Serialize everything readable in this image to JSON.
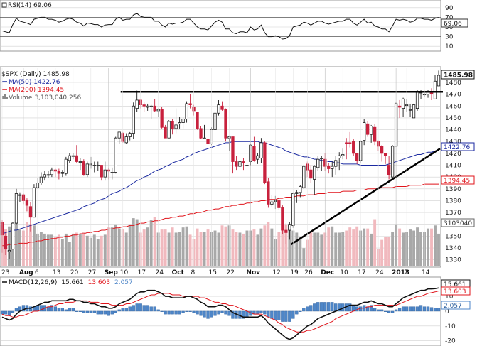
{
  "colors": {
    "up": "#1a1a1a",
    "down": "#c8213d",
    "vol_up": "#a8a8a8",
    "vol_down": "#f1b9be",
    "ma50": "#1b2aa0",
    "ma200": "#e0141b",
    "rsi_line": "#111111",
    "macd_line": "#111111",
    "signal_line": "#e0141b",
    "histogram": "#4e86c8",
    "grid": "#d0d0d0",
    "trendline": "#000000"
  },
  "rsi_panel": {
    "label": "RSI(14) 69.06",
    "current_tag": "69.06",
    "ticks": [
      "90",
      "70",
      "50",
      "30",
      "10"
    ]
  },
  "price_panel": {
    "label": "$SPX (Daily) 1485.98",
    "ma50_label": "MA(50) 1422.76",
    "ma200_label": "MA(200) 1394.45",
    "volume_label": "Volume 3,103,040,256",
    "price_tag": "1485.98",
    "ma50_tag": "1422.76",
    "ma200_tag": "1394.45",
    "volume_tag": "3103040",
    "y_ticks": [
      "1480",
      "1470",
      "1460",
      "1450",
      "1440",
      "1430",
      "1420",
      "1410",
      "1400",
      "1390",
      "1380",
      "1370",
      "1360",
      "1350",
      "1340",
      "1330"
    ]
  },
  "x_axis": {
    "labels": [
      "23",
      "Aug",
      "6",
      "13",
      "20",
      "27",
      "Sep",
      "10",
      "17",
      "24",
      "Oct",
      "8",
      "15",
      "22",
      "Nov",
      "12",
      "19",
      "26",
      "Dec",
      "10",
      "17",
      "24",
      "2013",
      "7",
      "14"
    ]
  },
  "macd_panel": {
    "label_prefix": "MACD(12,26,9)",
    "macd_value": "15.661",
    "signal_value": "13.603",
    "hist_value": "2.057",
    "ticks": [
      "10",
      "0",
      "-10",
      "-20"
    ]
  },
  "chart_data": {
    "type": "candlestick",
    "title": "$SPX (Daily) 1485.98",
    "ylim": [
      1325,
      1492
    ],
    "resistance_level": 1472,
    "support_trendline": {
      "from": [
        "2012-11-16",
        1343
      ],
      "to": [
        "2013-01-18",
        1424
      ]
    },
    "dates": [
      "2012-07-23",
      "2012-07-24",
      "2012-07-25",
      "2012-07-26",
      "2012-07-27",
      "2012-07-30",
      "2012-07-31",
      "2012-08-01",
      "2012-08-02",
      "2012-08-03",
      "2012-08-06",
      "2012-08-07",
      "2012-08-08",
      "2012-08-09",
      "2012-08-10",
      "2012-08-13",
      "2012-08-14",
      "2012-08-15",
      "2012-08-16",
      "2012-08-17",
      "2012-08-20",
      "2012-08-21",
      "2012-08-22",
      "2012-08-23",
      "2012-08-24",
      "2012-08-27",
      "2012-08-28",
      "2012-08-29",
      "2012-08-30",
      "2012-08-31",
      "2012-09-04",
      "2012-09-05",
      "2012-09-06",
      "2012-09-07",
      "2012-09-10",
      "2012-09-11",
      "2012-09-12",
      "2012-09-13",
      "2012-09-14",
      "2012-09-17",
      "2012-09-18",
      "2012-09-19",
      "2012-09-20",
      "2012-09-21",
      "2012-09-24",
      "2012-09-25",
      "2012-09-26",
      "2012-09-27",
      "2012-09-28",
      "2012-10-01",
      "2012-10-02",
      "2012-10-03",
      "2012-10-04",
      "2012-10-05",
      "2012-10-08",
      "2012-10-09",
      "2012-10-10",
      "2012-10-11",
      "2012-10-12",
      "2012-10-15",
      "2012-10-16",
      "2012-10-17",
      "2012-10-18",
      "2012-10-19",
      "2012-10-22",
      "2012-10-23",
      "2012-10-24",
      "2012-10-25",
      "2012-10-26",
      "2012-10-31",
      "2012-11-01",
      "2012-11-02",
      "2012-11-05",
      "2012-11-06",
      "2012-11-07",
      "2012-11-08",
      "2012-11-09",
      "2012-11-12",
      "2012-11-13",
      "2012-11-14",
      "2012-11-15",
      "2012-11-16",
      "2012-11-19",
      "2012-11-20",
      "2012-11-21",
      "2012-11-23",
      "2012-11-26",
      "2012-11-27",
      "2012-11-28",
      "2012-11-29",
      "2012-11-30",
      "2012-12-03",
      "2012-12-04",
      "2012-12-05",
      "2012-12-06",
      "2012-12-07",
      "2012-12-10",
      "2012-12-11",
      "2012-12-12",
      "2012-12-13",
      "2012-12-14",
      "2012-12-17",
      "2012-12-18",
      "2012-12-19",
      "2012-12-20",
      "2012-12-21",
      "2012-12-24",
      "2012-12-26",
      "2012-12-27",
      "2012-12-28",
      "2012-12-31",
      "2013-01-02",
      "2013-01-03",
      "2013-01-04",
      "2013-01-07",
      "2013-01-08",
      "2013-01-09",
      "2013-01-10",
      "2013-01-11",
      "2013-01-14",
      "2013-01-15",
      "2013-01-16",
      "2013-01-17",
      "2013-01-18"
    ],
    "open": [
      1362,
      1350,
      1337,
      1339,
      1361,
      1385,
      1385,
      1380,
      1375,
      1366,
      1391,
      1395,
      1400,
      1402,
      1402,
      1406,
      1405,
      1403,
      1403,
      1414,
      1418,
      1418,
      1413,
      1413,
      1402,
      1411,
      1410,
      1410,
      1410,
      1400,
      1406,
      1404,
      1404,
      1433,
      1437,
      1429,
      1434,
      1437,
      1458,
      1465,
      1461,
      1459,
      1460,
      1460,
      1456,
      1457,
      1442,
      1433,
      1447,
      1441,
      1445,
      1446,
      1449,
      1462,
      1459,
      1455,
      1441,
      1433,
      1432,
      1428,
      1440,
      1454,
      1460,
      1457,
      1433,
      1434,
      1413,
      1409,
      1413,
      1410,
      1413,
      1426,
      1415,
      1416,
      1429,
      1396,
      1377,
      1380,
      1380,
      1374,
      1355,
      1355,
      1359,
      1386,
      1387,
      1391,
      1411,
      1406,
      1398,
      1408,
      1416,
      1415,
      1409,
      1407,
      1409,
      1416,
      1418,
      1429,
      1429,
      1430,
      1420,
      1414,
      1431,
      1445,
      1436,
      1442,
      1430,
      1426,
      1420,
      1410,
      1400,
      1426,
      1460,
      1458,
      1461,
      1457,
      1450,
      1458,
      1471,
      1470,
      1470,
      1471,
      1466,
      1477
    ],
    "close": [
      1351,
      1339,
      1338,
      1361,
      1386,
      1385,
      1380,
      1376,
      1366,
      1391,
      1395,
      1400,
      1402,
      1402,
      1406,
      1405,
      1403,
      1404,
      1415,
      1418,
      1418,
      1413,
      1413,
      1402,
      1411,
      1411,
      1410,
      1410,
      1400,
      1406,
      1405,
      1404,
      1433,
      1438,
      1430,
      1434,
      1437,
      1460,
      1465,
      1461,
      1460,
      1460,
      1460,
      1456,
      1457,
      1442,
      1433,
      1447,
      1441,
      1444,
      1446,
      1449,
      1462,
      1461,
      1456,
      1441,
      1433,
      1433,
      1428,
      1440,
      1454,
      1461,
      1457,
      1433,
      1434,
      1413,
      1409,
      1413,
      1412,
      1410,
      1427,
      1414,
      1418,
      1429,
      1395,
      1377,
      1379,
      1380,
      1374,
      1355,
      1353,
      1360,
      1386,
      1387,
      1392,
      1409,
      1406,
      1399,
      1409,
      1415,
      1416,
      1409,
      1407,
      1409,
      1414,
      1418,
      1419,
      1428,
      1428,
      1420,
      1414,
      1430,
      1446,
      1436,
      1443,
      1430,
      1426,
      1420,
      1418,
      1402,
      1426,
      1462,
      1459,
      1466,
      1461,
      1457,
      1461,
      1472,
      1472,
      1470,
      1472,
      1470,
      1481,
      1486
    ],
    "high": [
      1364,
      1353,
      1344,
      1362,
      1390,
      1387,
      1386,
      1382,
      1379,
      1394,
      1399,
      1404,
      1405,
      1405,
      1408,
      1407,
      1407,
      1406,
      1417,
      1420,
      1420,
      1427,
      1416,
      1415,
      1413,
      1417,
      1413,
      1413,
      1410,
      1413,
      1408,
      1408,
      1434,
      1438,
      1438,
      1437,
      1438,
      1463,
      1473,
      1466,
      1463,
      1462,
      1461,
      1466,
      1458,
      1459,
      1444,
      1448,
      1449,
      1458,
      1451,
      1451,
      1464,
      1470,
      1461,
      1455,
      1443,
      1444,
      1438,
      1442,
      1455,
      1465,
      1464,
      1458,
      1435,
      1434,
      1418,
      1423,
      1416,
      1418,
      1428,
      1434,
      1420,
      1433,
      1430,
      1399,
      1385,
      1384,
      1381,
      1376,
      1361,
      1362,
      1387,
      1389,
      1393,
      1410,
      1413,
      1410,
      1410,
      1418,
      1418,
      1420,
      1412,
      1413,
      1418,
      1421,
      1424,
      1433,
      1438,
      1432,
      1420,
      1431,
      1449,
      1447,
      1444,
      1445,
      1431,
      1427,
      1420,
      1418,
      1427,
      1463,
      1465,
      1467,
      1466,
      1462,
      1462,
      1474,
      1474,
      1473,
      1474,
      1475,
      1486,
      1490
    ],
    "low": [
      1336,
      1334,
      1331,
      1339,
      1360,
      1379,
      1377,
      1371,
      1354,
      1366,
      1390,
      1393,
      1397,
      1399,
      1400,
      1400,
      1398,
      1400,
      1401,
      1412,
      1415,
      1412,
      1406,
      1401,
      1400,
      1407,
      1404,
      1405,
      1397,
      1397,
      1398,
      1398,
      1403,
      1428,
      1429,
      1428,
      1431,
      1432,
      1455,
      1458,
      1455,
      1456,
      1449,
      1455,
      1451,
      1441,
      1433,
      1433,
      1436,
      1437,
      1441,
      1441,
      1446,
      1458,
      1452,
      1440,
      1432,
      1432,
      1427,
      1427,
      1440,
      1452,
      1456,
      1430,
      1422,
      1403,
      1406,
      1403,
      1406,
      1405,
      1410,
      1413,
      1411,
      1412,
      1394,
      1374,
      1375,
      1373,
      1372,
      1352,
      1343,
      1347,
      1357,
      1378,
      1383,
      1390,
      1400,
      1395,
      1385,
      1405,
      1405,
      1405,
      1403,
      1400,
      1402,
      1406,
      1415,
      1415,
      1425,
      1418,
      1411,
      1412,
      1427,
      1434,
      1429,
      1427,
      1422,
      1413,
      1411,
      1398,
      1398,
      1426,
      1450,
      1451,
      1455,
      1451,
      1451,
      1456,
      1466,
      1468,
      1467,
      1465,
      1466,
      1477
    ],
    "volume": [
      3.4,
      3.5,
      3.8,
      3.8,
      4.2,
      3.5,
      3.4,
      4.2,
      4.0,
      3.9,
      3.1,
      3.3,
      3.1,
      3.0,
      3.0,
      2.8,
      3.0,
      2.6,
      3.1,
      2.3,
      3.1,
      3.2,
      3.1,
      3.3,
      2.9,
      2.7,
      3.0,
      2.6,
      2.9,
      3.0,
      3.7,
      3.7,
      4.0,
      3.6,
      3.5,
      3.2,
      4.0,
      4.6,
      4.5,
      3.2,
      3.5,
      3.7,
      4.4,
      4.7,
      3.2,
      3.5,
      3.5,
      3.2,
      3.7,
      3.2,
      3.3,
      3.7,
      3.8,
      3.0,
      2.6,
      3.6,
      3.3,
      3.3,
      3.5,
      3.3,
      3.4,
      3.2,
      3.9,
      3.8,
      3.9,
      3.5,
      3.3,
      3.2,
      3.1,
      3.4,
      3.4,
      3.5,
      3.0,
      3.6,
      3.9,
      4.2,
      3.6,
      2.6,
      3.3,
      3.6,
      4.0,
      4.0,
      3.4,
      3.2,
      2.8,
      1.7,
      2.5,
      3.3,
      3.2,
      3.2,
      3.0,
      3.2,
      3.7,
      3.8,
      3.2,
      3.2,
      3.3,
      3.4,
      3.7,
      3.5,
      3.8,
      3.4,
      3.6,
      3.6,
      3.1,
      4.5,
      1.6,
      2.5,
      2.8,
      2.8,
      3.3,
      4.0,
      3.6,
      3.2,
      3.3,
      3.5,
      3.4,
      3.7,
      3.3,
      3.3,
      3.6,
      3.6,
      3.9,
      3.1
    ],
    "ma50": [
      1352,
      1353,
      1354,
      1355,
      1355,
      1356,
      1357,
      1358,
      1359,
      1360,
      1361,
      1362,
      1363,
      1364,
      1365,
      1366,
      1367,
      1368,
      1369,
      1370,
      1371,
      1372,
      1373,
      1375,
      1376,
      1377,
      1378,
      1380,
      1381,
      1382,
      1384,
      1386,
      1387,
      1388,
      1390,
      1391,
      1393,
      1395,
      1397,
      1398,
      1400,
      1401,
      1403,
      1405,
      1406,
      1407,
      1409,
      1410,
      1412,
      1413,
      1414,
      1415,
      1417,
      1418,
      1420,
      1421,
      1422,
      1423,
      1424,
      1425,
      1426,
      1427,
      1428,
      1429,
      1429,
      1430,
      1430,
      1430,
      1430,
      1430,
      1430,
      1430,
      1430,
      1429,
      1429,
      1428,
      1427,
      1426,
      1425,
      1424,
      1422,
      1421,
      1420,
      1419,
      1418,
      1417,
      1417,
      1416,
      1415,
      1415,
      1414,
      1414,
      1413,
      1413,
      1412,
      1412,
      1411,
      1411,
      1411,
      1411,
      1411,
      1410,
      1410,
      1410,
      1410,
      1410,
      1410,
      1410,
      1410,
      1411,
      1412,
      1413,
      1414,
      1415,
      1416,
      1417,
      1418,
      1419,
      1419,
      1420,
      1421,
      1421,
      1422,
      1423
    ],
    "ma200": [
      1342,
      1342,
      1343,
      1343,
      1343,
      1344,
      1344,
      1344,
      1345,
      1345,
      1346,
      1346,
      1347,
      1347,
      1348,
      1348,
      1349,
      1349,
      1350,
      1350,
      1351,
      1351,
      1352,
      1352,
      1353,
      1353,
      1354,
      1354,
      1355,
      1355,
      1356,
      1356,
      1357,
      1357,
      1358,
      1358,
      1359,
      1359,
      1360,
      1361,
      1361,
      1362,
      1362,
      1363,
      1363,
      1364,
      1365,
      1365,
      1366,
      1366,
      1367,
      1367,
      1368,
      1369,
      1369,
      1370,
      1370,
      1371,
      1372,
      1372,
      1373,
      1373,
      1374,
      1375,
      1375,
      1376,
      1376,
      1377,
      1377,
      1378,
      1378,
      1379,
      1379,
      1380,
      1380,
      1381,
      1381,
      1381,
      1382,
      1382,
      1383,
      1383,
      1383,
      1384,
      1384,
      1384,
      1385,
      1385,
      1385,
      1386,
      1386,
      1386,
      1387,
      1387,
      1387,
      1387,
      1388,
      1388,
      1388,
      1388,
      1389,
      1389,
      1389,
      1390,
      1390,
      1390,
      1390,
      1391,
      1391,
      1391,
      1391,
      1392,
      1392,
      1392,
      1392,
      1393,
      1393,
      1393,
      1393,
      1394,
      1394,
      1394,
      1394,
      1394
    ],
    "rsi": [
      42,
      40,
      38,
      55,
      68,
      62,
      60,
      58,
      55,
      66,
      68,
      70,
      70,
      66,
      66,
      64,
      60,
      62,
      66,
      68,
      66,
      60,
      58,
      52,
      58,
      57,
      55,
      55,
      50,
      54,
      55,
      55,
      66,
      70,
      64,
      66,
      66,
      75,
      78,
      72,
      70,
      70,
      70,
      62,
      62,
      54,
      50,
      58,
      56,
      58,
      58,
      60,
      66,
      66,
      58,
      50,
      46,
      46,
      44,
      52,
      60,
      64,
      60,
      46,
      46,
      38,
      36,
      40,
      40,
      38,
      50,
      44,
      46,
      54,
      38,
      30,
      30,
      32,
      30,
      25,
      26,
      32,
      50,
      52,
      54,
      60,
      58,
      54,
      58,
      62,
      62,
      58,
      56,
      58,
      60,
      62,
      62,
      66,
      66,
      58,
      54,
      60,
      66,
      58,
      60,
      52,
      50,
      46,
      46,
      40,
      52,
      66,
      64,
      66,
      64,
      60,
      62,
      68,
      68,
      66,
      66,
      64,
      68,
      69.06
    ],
    "macd": [
      -4,
      -5,
      -6,
      -5,
      -2,
      0,
      1,
      2,
      2,
      3,
      4,
      5,
      6,
      6,
      7,
      7,
      7,
      7,
      7,
      8,
      8,
      7,
      7,
      6,
      6,
      5,
      5,
      4,
      3,
      3,
      2,
      2,
      3,
      5,
      6,
      7,
      8,
      10,
      12,
      13,
      13,
      14,
      14,
      14,
      13,
      12,
      10,
      10,
      9,
      9,
      9,
      9,
      10,
      10,
      9,
      8,
      6,
      5,
      3,
      3,
      3,
      4,
      4,
      3,
      1,
      -1,
      -2,
      -3,
      -4,
      -4,
      -4,
      -4,
      -4,
      -3,
      -5,
      -8,
      -10,
      -12,
      -14,
      -16,
      -18,
      -19,
      -18,
      -16,
      -14,
      -12,
      -10,
      -9,
      -7,
      -5,
      -4,
      -3,
      -2,
      -1,
      0,
      1,
      2,
      3,
      4,
      4,
      4,
      5,
      6,
      6,
      7,
      6,
      5,
      5,
      4,
      3,
      3,
      5,
      7,
      9,
      10,
      11,
      12,
      13,
      14,
      14,
      15,
      15,
      15.2,
      15.661
    ],
    "signal": [
      -2,
      -3,
      -3,
      -4,
      -4,
      -3,
      -3,
      -2,
      -1,
      0,
      0,
      1,
      2,
      3,
      3,
      4,
      5,
      5,
      6,
      6,
      6,
      7,
      7,
      7,
      7,
      6,
      6,
      6,
      5,
      5,
      5,
      4,
      4,
      4,
      4,
      5,
      5,
      6,
      7,
      8,
      9,
      10,
      11,
      11,
      12,
      12,
      12,
      12,
      11,
      11,
      11,
      10,
      10,
      10,
      10,
      10,
      9,
      9,
      8,
      7,
      6,
      6,
      5,
      5,
      4,
      4,
      3,
      2,
      1,
      0,
      -1,
      -2,
      -2,
      -2,
      -3,
      -4,
      -5,
      -6,
      -8,
      -9,
      -11,
      -12,
      -13,
      -14,
      -14,
      -14,
      -13,
      -13,
      -12,
      -11,
      -10,
      -9,
      -8,
      -7,
      -5,
      -4,
      -3,
      -2,
      -1,
      0,
      1,
      2,
      2,
      3,
      3,
      4,
      4,
      4,
      4,
      4,
      4,
      4,
      5,
      6,
      7,
      8,
      9,
      10,
      10,
      11,
      12,
      12.5,
      13,
      13.603
    ]
  }
}
